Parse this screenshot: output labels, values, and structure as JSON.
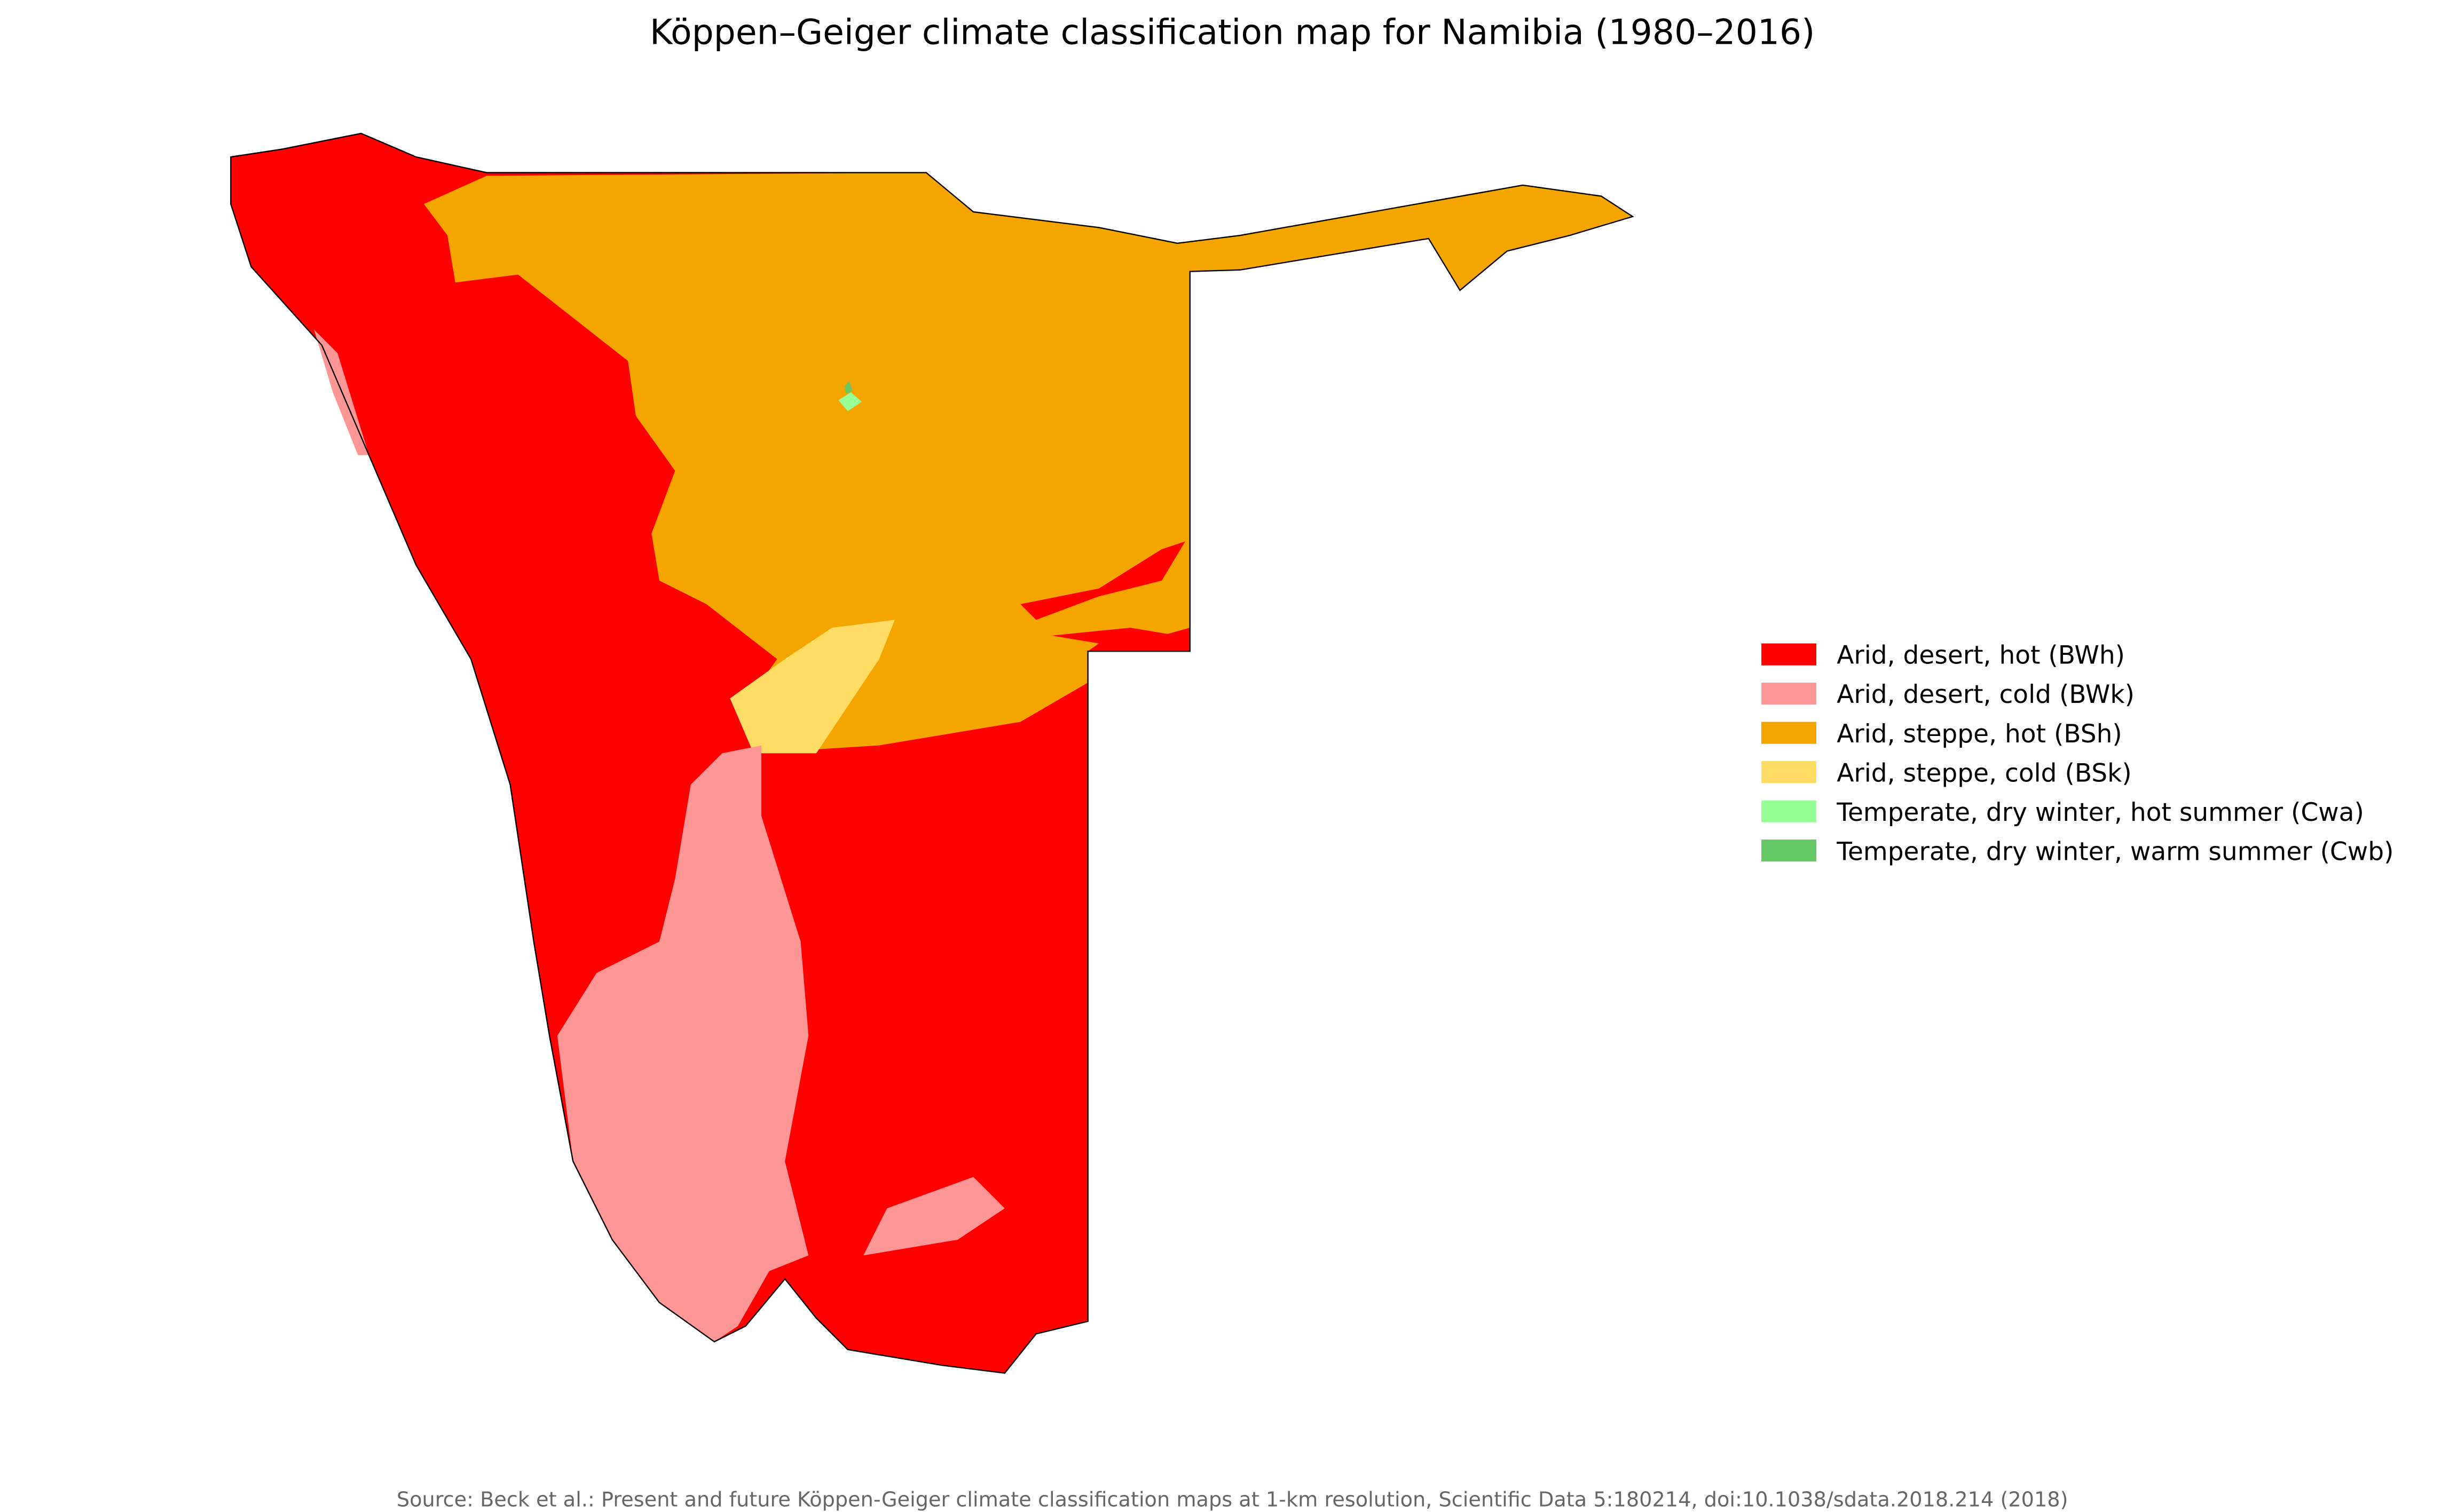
{
  "title": "Köppen–Geiger climate classification map for Namibia (1980–2016)",
  "legend": [
    {
      "label": "Arid, desert, hot (BWh)",
      "color": "#ff0000"
    },
    {
      "label": "Arid, desert, cold (BWk)",
      "color": "#ff9696"
    },
    {
      "label": "Arid, steppe, hot (BSh)",
      "color": "#f5a500"
    },
    {
      "label": "Arid, steppe, cold (BSk)",
      "color": "#ffdc64"
    },
    {
      "label": "Temperate, dry winter, hot summer (Cwa)",
      "color": "#96ff96"
    },
    {
      "label": "Temperate, dry winter, warm summer (Cwb)",
      "color": "#64c864"
    }
  ],
  "source": "Source: Beck et al.: Present and future Köppen-Geiger climate classification maps at 1-km resolution, Scientific Data 5:180214, doi:10.1038/sdata.2018.214 (2018)"
}
